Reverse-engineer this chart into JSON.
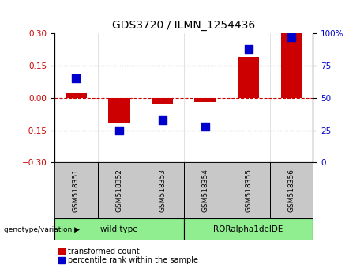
{
  "title": "GDS3720 / ILMN_1254436",
  "samples": [
    "GSM518351",
    "GSM518352",
    "GSM518353",
    "GSM518354",
    "GSM518355",
    "GSM518356"
  ],
  "red_values": [
    0.02,
    -0.12,
    -0.03,
    -0.02,
    0.19,
    0.3
  ],
  "blue_values": [
    65,
    25,
    33,
    28,
    88,
    97
  ],
  "ylim_left": [
    -0.3,
    0.3
  ],
  "ylim_right": [
    0,
    100
  ],
  "yticks_left": [
    -0.3,
    -0.15,
    0,
    0.15,
    0.3
  ],
  "yticks_right": [
    0,
    25,
    50,
    75,
    100
  ],
  "red_color": "#CC0000",
  "blue_color": "#0000CC",
  "zero_line_color": "#CC0000",
  "dotted_line_color": "#000000",
  "bar_width": 0.5,
  "marker_size": 45,
  "group_color": "#90EE90",
  "sample_box_color": "#C8C8C8",
  "legend_items": [
    {
      "label": "transformed count",
      "color": "#CC0000"
    },
    {
      "label": "percentile rank within the sample",
      "color": "#0000CC"
    }
  ],
  "genotype_label": "genotype/variation",
  "tick_label_color_left": "#CC0000",
  "tick_label_color_right": "#0000CC",
  "group1_label": "wild type",
  "group2_label": "RORalpha1delDE",
  "background_color": "#ffffff"
}
